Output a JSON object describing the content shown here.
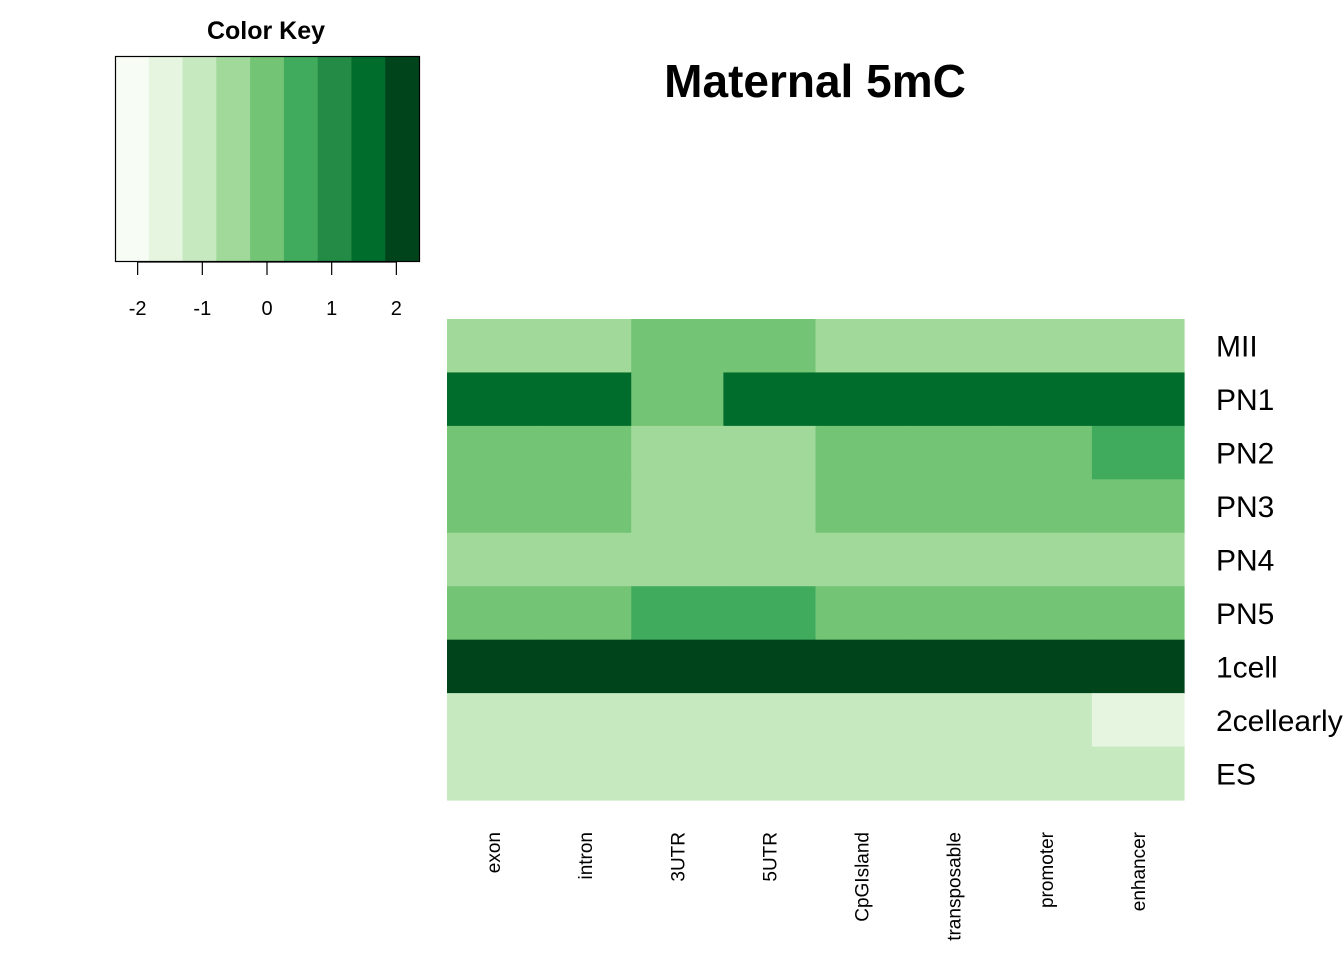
{
  "chart_data": {
    "type": "heatmap",
    "title": "Maternal 5mC",
    "rows": [
      "MII",
      "PN1",
      "PN2",
      "PN3",
      "PN4",
      "PN5",
      "1cell",
      "2cellearly",
      "ES"
    ],
    "columns": [
      "exon",
      "intron",
      "3UTR",
      "5UTR",
      "CpGIsland",
      "transposable",
      "promoter",
      "enhancer"
    ],
    "values": [
      [
        -0.5,
        -0.5,
        0.0,
        0.0,
        -0.5,
        -0.5,
        -0.5,
        -0.5
      ],
      [
        1.5,
        1.5,
        0.0,
        1.5,
        1.5,
        1.5,
        1.5,
        1.5
      ],
      [
        0.0,
        0.0,
        -0.5,
        -0.5,
        0.0,
        0.0,
        0.0,
        0.5
      ],
      [
        0.0,
        0.0,
        -0.5,
        -0.5,
        0.0,
        0.0,
        0.0,
        0.0
      ],
      [
        -0.5,
        -0.5,
        -0.5,
        -0.5,
        -0.5,
        -0.5,
        -0.5,
        -0.5
      ],
      [
        0.0,
        0.0,
        0.5,
        0.5,
        0.0,
        0.0,
        0.0,
        0.0
      ],
      [
        2.5,
        2.5,
        2.5,
        2.5,
        2.5,
        2.5,
        2.0,
        2.5
      ],
      [
        -1.0,
        -1.0,
        -1.0,
        -1.0,
        -1.0,
        -1.0,
        -1.0,
        -1.5
      ],
      [
        -1.0,
        -1.0,
        -1.0,
        -1.0,
        -1.0,
        -1.0,
        -1.0,
        -1.0
      ]
    ],
    "color_key": {
      "title": "Color Key",
      "range": [
        -2.35,
        2.35
      ],
      "breaks": [
        -2.35,
        -1.83,
        -1.31,
        -0.78,
        -0.26,
        0.26,
        0.78,
        1.31,
        1.83,
        2.35
      ],
      "colors": [
        "#f7fcf5",
        "#e5f5e0",
        "#c7e9c0",
        "#a1d99b",
        "#74c476",
        "#41ab5d",
        "#238b45",
        "#006d2c",
        "#00441b"
      ],
      "ticks": [
        "-2",
        "-1",
        "0",
        "1",
        "2"
      ]
    }
  }
}
